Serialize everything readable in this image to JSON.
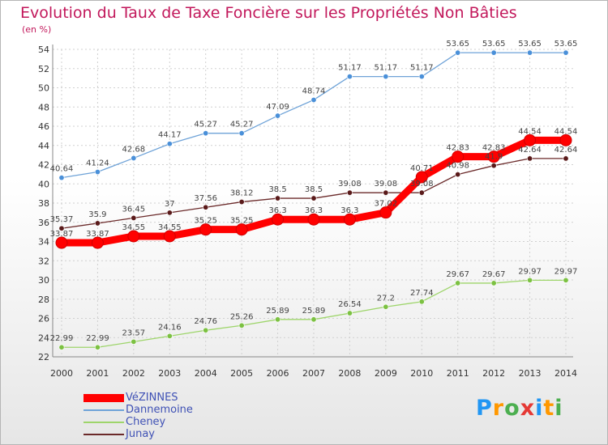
{
  "header": {
    "title": "Evolution du Taux de Taxe Foncière sur les Propriétés Non Bâties",
    "unit": "(en %)"
  },
  "logo": {
    "letters": [
      "P",
      "r",
      "o",
      "x",
      "i",
      "t",
      "i"
    ],
    "colors": [
      "#2196f3",
      "#ff9800",
      "#4caf50",
      "#e53935",
      "#2196f3",
      "#ff9800",
      "#4caf50"
    ]
  },
  "chart_data": {
    "type": "line",
    "title": "Evolution du Taux de Taxe Foncière sur les Propriétés Non Bâties",
    "ylabel": "(en %)",
    "x": [
      "2000",
      "2001",
      "2002",
      "2003",
      "2004",
      "2005",
      "2006",
      "2007",
      "2008",
      "2009",
      "2010",
      "2011",
      "2012",
      "2013",
      "2014"
    ],
    "ylim": [
      22,
      54
    ],
    "yticks": [
      22,
      24,
      26,
      28,
      30,
      32,
      34,
      36,
      38,
      40,
      42,
      44,
      46,
      48,
      50,
      52,
      54
    ],
    "grid": true,
    "legend_position": "bottom-left",
    "series": [
      {
        "name": "VéZINNES",
        "color": "#ff0000",
        "marker": "#ff0000",
        "width": 9,
        "values": [
          33.87,
          33.87,
          34.55,
          34.55,
          35.25,
          35.25,
          36.3,
          36.3,
          36.3,
          37.02,
          40.71,
          42.83,
          42.83,
          44.54,
          44.54
        ]
      },
      {
        "name": "Dannemoine",
        "color": "#6fa3d8",
        "marker": "#4a90d9",
        "width": 1.3,
        "values": [
          40.64,
          41.24,
          42.68,
          44.17,
          45.27,
          45.27,
          47.09,
          48.74,
          51.17,
          51.17,
          51.17,
          53.65,
          53.65,
          53.65,
          53.65
        ]
      },
      {
        "name": "Cheney",
        "color": "#9ed56b",
        "marker": "#7cc142",
        "width": 1.3,
        "values": [
          22.99,
          22.99,
          23.57,
          24.16,
          24.76,
          25.26,
          25.89,
          25.89,
          26.54,
          27.2,
          27.74,
          29.67,
          29.67,
          29.97,
          29.97
        ]
      },
      {
        "name": "Junay",
        "color": "#6b2a2a",
        "marker": "#5a1a1a",
        "width": 1.3,
        "values": [
          35.37,
          35.9,
          36.45,
          37.0,
          37.56,
          38.12,
          38.5,
          38.5,
          39.08,
          39.08,
          39.08,
          40.98,
          41.9,
          42.64,
          42.64
        ]
      }
    ],
    "data_labels": {
      "VéZINNES": [
        "33.87",
        "33.87",
        "34.55",
        "34.55",
        "35.25",
        "35.25",
        "36.3",
        "36.3",
        "36.3",
        "37.02",
        "40.71",
        "42.83",
        "42.83",
        "44.54",
        "44.54"
      ],
      "Dannemoine": [
        "40.64",
        "41.24",
        "42.68",
        "44.17",
        "45.27",
        "45.27",
        "47.09",
        "48.74",
        "51.17",
        "51.17",
        "51.17",
        "53.65",
        "53.65",
        "53.65",
        "53.65"
      ],
      "Cheney": [
        "22.99",
        "22.99",
        "23.57",
        "24.16",
        "24.76",
        "25.26",
        "25.89",
        "25.89",
        "26.54",
        "27.2",
        "27.74",
        "29.67",
        "29.67",
        "29.97",
        "29.97"
      ],
      "Junay": [
        "35.37",
        "35.9",
        "36.45",
        "37",
        "37.56",
        "38.12",
        "38.5",
        "38.5",
        "39.08",
        "39.08",
        "39.08",
        "40.98",
        "41.9",
        "42.64",
        "42.64"
      ]
    }
  }
}
